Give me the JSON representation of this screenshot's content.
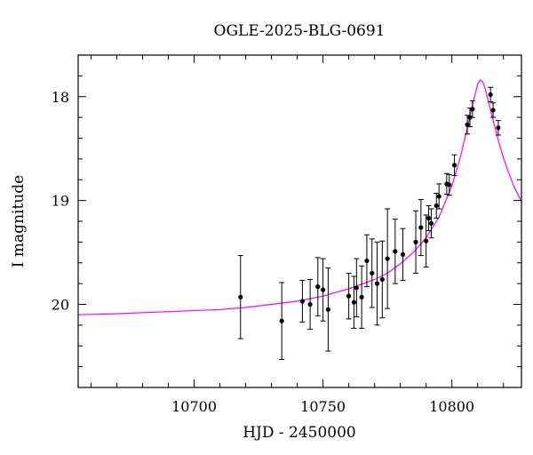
{
  "chart_data": {
    "type": "scatter",
    "title": "OGLE-2025-BLG-0691",
    "xlabel": "HJD - 2450000",
    "ylabel": "I magnitude",
    "xlim": [
      10655,
      10827
    ],
    "ylim": [
      20.8,
      17.6
    ],
    "y_inverted": true,
    "grid": false,
    "x_ticks": [
      10700,
      10750,
      10800
    ],
    "y_ticks": [
      18,
      19,
      20
    ],
    "x_minor_step": 10,
    "y_minor_step": 0.2,
    "points_color": "#000000",
    "model_color": "#ff00ff",
    "series": [
      {
        "kind": "points",
        "x": [
          10718,
          10734,
          10742,
          10745,
          10748,
          10750,
          10752,
          10760,
          10762,
          10763,
          10765,
          10767,
          10769,
          10771,
          10773,
          10775,
          10778,
          10781,
          10786,
          10788,
          10790,
          10791,
          10792,
          10794,
          10795,
          10798,
          10799,
          10801,
          10806,
          10807,
          10808,
          10815,
          10816,
          10818
        ],
        "y": [
          19.93,
          20.16,
          19.97,
          20.0,
          19.83,
          19.86,
          20.05,
          19.92,
          19.98,
          19.84,
          19.93,
          19.58,
          19.7,
          19.8,
          19.76,
          19.56,
          19.49,
          19.52,
          19.4,
          19.26,
          19.39,
          19.17,
          19.22,
          19.05,
          18.96,
          18.84,
          18.85,
          18.66,
          18.27,
          18.2,
          18.12,
          17.98,
          18.13,
          18.3
        ],
        "err": [
          0.4,
          0.37,
          0.2,
          0.24,
          0.28,
          0.3,
          0.4,
          0.22,
          0.25,
          0.28,
          0.3,
          0.25,
          0.33,
          0.4,
          0.37,
          0.48,
          0.31,
          0.25,
          0.3,
          0.27,
          0.25,
          0.12,
          0.14,
          0.12,
          0.12,
          0.1,
          0.1,
          0.1,
          0.09,
          0.09,
          0.08,
          0.07,
          0.07,
          0.07
        ]
      },
      {
        "kind": "model",
        "x": [
          10655,
          10670,
          10690,
          10710,
          10720,
          10730,
          10740,
          10750,
          10760,
          10770,
          10775,
          10780,
          10785,
          10790,
          10795,
          10800,
          10803,
          10806,
          10808,
          10810,
          10811,
          10812,
          10813,
          10814,
          10816,
          10818,
          10820,
          10822,
          10824,
          10827
        ],
        "y": [
          20.1,
          20.09,
          20.07,
          20.05,
          20.03,
          20.0,
          19.97,
          19.92,
          19.85,
          19.76,
          19.7,
          19.61,
          19.5,
          19.36,
          19.16,
          18.86,
          18.61,
          18.3,
          18.08,
          17.88,
          17.84,
          17.86,
          17.93,
          18.03,
          18.23,
          18.42,
          18.59,
          18.73,
          18.86,
          19.01
        ]
      }
    ]
  }
}
